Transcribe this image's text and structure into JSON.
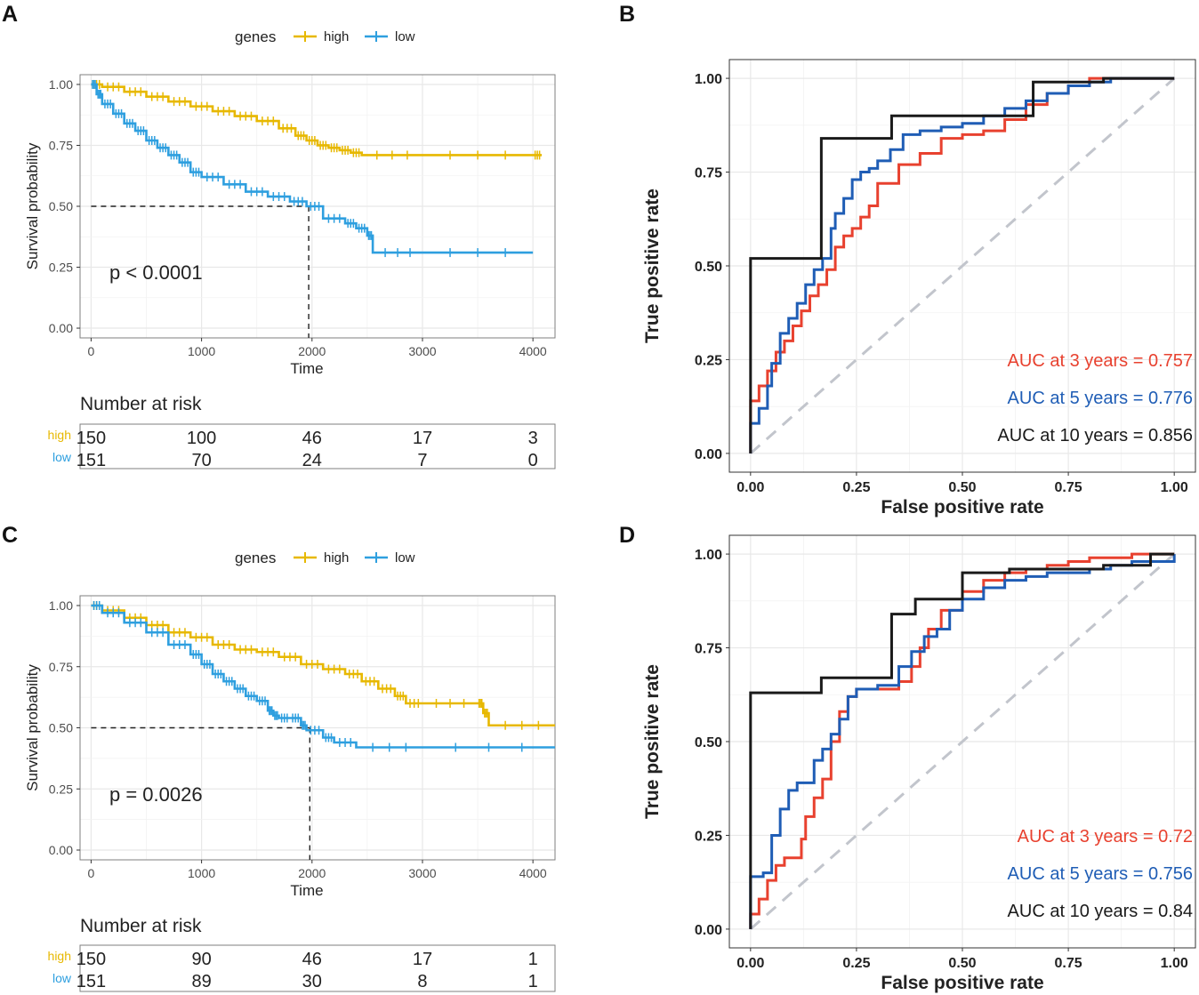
{
  "colors": {
    "high": "#E7B800",
    "low": "#2E9FDF",
    "auc3": "#E8412F",
    "auc5": "#1F5DB5",
    "auc10": "#1A1A1A",
    "diagonal": "#C2C5CC",
    "grid": "#E8E8E8"
  },
  "chart_data": [
    {
      "panel": "A",
      "type": "line",
      "subtype": "kaplan-meier",
      "legend_title": "genes",
      "legend_labels": [
        "high",
        "low"
      ],
      "xlabel": "Time",
      "ylabel": "Survival probability",
      "xlim": [
        -100,
        4200
      ],
      "ylim": [
        -0.04,
        1.04
      ],
      "xticks": [
        0,
        1000,
        2000,
        3000,
        4000
      ],
      "yticks": [
        0,
        0.25,
        0.5,
        0.75,
        1
      ],
      "xtick_labels": [
        "0",
        "1000",
        "2000",
        "3000",
        "4000"
      ],
      "ytick_labels": [
        "0.00",
        "0.25",
        "0.50",
        "0.75",
        "1.00"
      ],
      "pvalue": "p < 0.0001",
      "median_line": {
        "x": 1970,
        "y": 0.5
      },
      "series": [
        {
          "name": "high",
          "x": [
            0,
            100,
            300,
            500,
            700,
            900,
            1100,
            1300,
            1500,
            1700,
            1850,
            1950,
            2050,
            2150,
            2250,
            2350,
            2450,
            3000,
            4000,
            4080
          ],
          "y": [
            1.0,
            0.99,
            0.97,
            0.95,
            0.93,
            0.91,
            0.89,
            0.87,
            0.85,
            0.82,
            0.79,
            0.77,
            0.75,
            0.74,
            0.73,
            0.72,
            0.71,
            0.71,
            0.71,
            0.71
          ]
        },
        {
          "name": "low",
          "x": [
            0,
            50,
            100,
            200,
            300,
            400,
            500,
            600,
            700,
            800,
            900,
            1000,
            1200,
            1400,
            1600,
            1800,
            1950,
            2100,
            2300,
            2400,
            2500,
            2550,
            3000,
            4000
          ],
          "y": [
            1.0,
            0.96,
            0.92,
            0.88,
            0.84,
            0.81,
            0.77,
            0.74,
            0.71,
            0.68,
            0.64,
            0.62,
            0.59,
            0.56,
            0.54,
            0.52,
            0.5,
            0.45,
            0.43,
            0.41,
            0.38,
            0.31,
            0.31,
            0.31
          ]
        }
      ],
      "risk_table": {
        "title": "Number at risk",
        "rows": [
          {
            "label": "high",
            "values": [
              "150",
              "100",
              "46",
              "17",
              "3"
            ]
          },
          {
            "label": "low",
            "values": [
              "151",
              "70",
              "24",
              "7",
              "0"
            ]
          }
        ]
      }
    },
    {
      "panel": "B",
      "type": "line",
      "subtype": "roc",
      "xlabel": "False positive rate",
      "ylabel": "True positive rate",
      "xlim": [
        -0.05,
        1.05
      ],
      "ylim": [
        -0.05,
        1.05
      ],
      "xticks": [
        0,
        0.25,
        0.5,
        0.75,
        1
      ],
      "yticks": [
        0,
        0.25,
        0.5,
        0.75,
        1
      ],
      "tick_labels": [
        "0.00",
        "0.25",
        "0.50",
        "0.75",
        "1.00"
      ],
      "series": [
        {
          "name": "AUC at 3 years = 0.757",
          "x": [
            0,
            0,
            0.02,
            0.04,
            0.06,
            0.08,
            0.1,
            0.12,
            0.14,
            0.16,
            0.18,
            0.2,
            0.22,
            0.24,
            0.26,
            0.28,
            0.3,
            0.35,
            0.4,
            0.45,
            0.5,
            0.55,
            0.6,
            0.65,
            0.7,
            0.75,
            0.8,
            1.0
          ],
          "y": [
            0,
            0.14,
            0.18,
            0.22,
            0.27,
            0.3,
            0.34,
            0.38,
            0.42,
            0.45,
            0.49,
            0.55,
            0.58,
            0.6,
            0.63,
            0.66,
            0.72,
            0.77,
            0.8,
            0.84,
            0.85,
            0.86,
            0.89,
            0.93,
            0.96,
            0.98,
            1.0,
            1.0
          ]
        },
        {
          "name": "AUC at 5 years = 0.776",
          "x": [
            0,
            0,
            0.02,
            0.04,
            0.05,
            0.07,
            0.09,
            0.11,
            0.13,
            0.15,
            0.17,
            0.19,
            0.2,
            0.22,
            0.24,
            0.26,
            0.28,
            0.3,
            0.33,
            0.36,
            0.4,
            0.45,
            0.5,
            0.55,
            0.6,
            0.65,
            0.7,
            0.75,
            0.8,
            0.85,
            1.0
          ],
          "y": [
            0,
            0.08,
            0.12,
            0.18,
            0.24,
            0.32,
            0.36,
            0.4,
            0.45,
            0.49,
            0.52,
            0.6,
            0.64,
            0.68,
            0.73,
            0.75,
            0.76,
            0.78,
            0.81,
            0.85,
            0.86,
            0.87,
            0.88,
            0.9,
            0.92,
            0.94,
            0.96,
            0.98,
            0.99,
            1.0,
            1.0
          ]
        },
        {
          "name": "AUC at 10 years = 0.856",
          "x": [
            0,
            0,
            0.167,
            0.167,
            0.333,
            0.333,
            0.667,
            0.667,
            0.833,
            0.833,
            1.0
          ],
          "y": [
            0,
            0.52,
            0.52,
            0.84,
            0.84,
            0.9,
            0.9,
            0.99,
            0.99,
            1.0,
            1.0
          ]
        }
      ],
      "annotations": [
        "AUC at 3 years = 0.757",
        "AUC at 5 years = 0.776",
        "AUC at 10 years = 0.856"
      ]
    },
    {
      "panel": "C",
      "type": "line",
      "subtype": "kaplan-meier",
      "legend_title": "genes",
      "legend_labels": [
        "high",
        "low"
      ],
      "xlabel": "Time",
      "ylabel": "Survival probability",
      "xlim": [
        -100,
        4200
      ],
      "ylim": [
        -0.04,
        1.04
      ],
      "xticks": [
        0,
        1000,
        2000,
        3000,
        4000
      ],
      "yticks": [
        0,
        0.25,
        0.5,
        0.75,
        1
      ],
      "xtick_labels": [
        "0",
        "1000",
        "2000",
        "3000",
        "4000"
      ],
      "ytick_labels": [
        "0.00",
        "0.25",
        "0.50",
        "0.75",
        "1.00"
      ],
      "pvalue": "p = 0.0026",
      "median_line": {
        "x": 1980,
        "y": 0.5
      },
      "series": [
        {
          "name": "high",
          "x": [
            0,
            100,
            300,
            500,
            700,
            900,
            1100,
            1300,
            1500,
            1700,
            1900,
            2100,
            2300,
            2450,
            2600,
            2750,
            2850,
            3000,
            3500,
            3550,
            3600,
            4200
          ],
          "y": [
            1.0,
            0.98,
            0.95,
            0.92,
            0.89,
            0.87,
            0.84,
            0.82,
            0.81,
            0.79,
            0.76,
            0.74,
            0.72,
            0.69,
            0.66,
            0.63,
            0.6,
            0.6,
            0.6,
            0.56,
            0.51,
            0.51
          ]
        },
        {
          "name": "low",
          "x": [
            0,
            100,
            300,
            500,
            700,
            900,
            1000,
            1100,
            1200,
            1300,
            1400,
            1500,
            1600,
            1650,
            1700,
            1800,
            1900,
            1950,
            2100,
            2200,
            2400,
            3000,
            4200
          ],
          "y": [
            1.0,
            0.97,
            0.93,
            0.89,
            0.84,
            0.8,
            0.76,
            0.72,
            0.69,
            0.66,
            0.63,
            0.61,
            0.57,
            0.55,
            0.54,
            0.54,
            0.51,
            0.49,
            0.46,
            0.44,
            0.42,
            0.42,
            0.42
          ]
        }
      ],
      "risk_table": {
        "title": "Number at risk",
        "rows": [
          {
            "label": "high",
            "values": [
              "150",
              "90",
              "46",
              "17",
              "1"
            ]
          },
          {
            "label": "low",
            "values": [
              "151",
              "89",
              "30",
              "8",
              "1"
            ]
          }
        ]
      }
    },
    {
      "panel": "D",
      "type": "line",
      "subtype": "roc",
      "xlabel": "False positive rate",
      "ylabel": "True positive rate",
      "xlim": [
        -0.05,
        1.05
      ],
      "ylim": [
        -0.05,
        1.05
      ],
      "xticks": [
        0,
        0.25,
        0.5,
        0.75,
        1
      ],
      "yticks": [
        0,
        0.25,
        0.5,
        0.75,
        1
      ],
      "tick_labels": [
        "0.00",
        "0.25",
        "0.50",
        "0.75",
        "1.00"
      ],
      "series": [
        {
          "name": "AUC at 3 years = 0.72",
          "x": [
            0,
            0,
            0.02,
            0.04,
            0.06,
            0.08,
            0.1,
            0.12,
            0.13,
            0.15,
            0.17,
            0.19,
            0.21,
            0.23,
            0.25,
            0.3,
            0.35,
            0.38,
            0.4,
            0.42,
            0.45,
            0.5,
            0.55,
            0.6,
            0.65,
            0.7,
            0.75,
            0.8,
            0.9,
            1.0
          ],
          "y": [
            0,
            0.04,
            0.08,
            0.13,
            0.17,
            0.19,
            0.19,
            0.24,
            0.3,
            0.35,
            0.4,
            0.5,
            0.58,
            0.62,
            0.64,
            0.64,
            0.66,
            0.7,
            0.75,
            0.8,
            0.85,
            0.9,
            0.93,
            0.95,
            0.96,
            0.97,
            0.98,
            0.99,
            1.0,
            1.0
          ]
        },
        {
          "name": "AUC at 5 years = 0.756",
          "x": [
            0,
            0,
            0.03,
            0.05,
            0.07,
            0.09,
            0.11,
            0.13,
            0.15,
            0.17,
            0.19,
            0.21,
            0.23,
            0.25,
            0.3,
            0.35,
            0.38,
            0.41,
            0.44,
            0.47,
            0.5,
            0.55,
            0.6,
            0.65,
            0.7,
            0.75,
            0.8,
            0.85,
            0.9,
            1.0
          ],
          "y": [
            0,
            0.14,
            0.15,
            0.25,
            0.32,
            0.37,
            0.39,
            0.39,
            0.45,
            0.48,
            0.52,
            0.56,
            0.62,
            0.64,
            0.65,
            0.7,
            0.74,
            0.78,
            0.8,
            0.85,
            0.88,
            0.91,
            0.93,
            0.94,
            0.95,
            0.95,
            0.96,
            0.97,
            0.98,
            1.0
          ]
        },
        {
          "name": "AUC at 10 years = 0.84",
          "x": [
            0,
            0,
            0.167,
            0.167,
            0.333,
            0.333,
            0.389,
            0.389,
            0.5,
            0.5,
            0.611,
            0.611,
            0.833,
            0.833,
            0.944,
            0.944,
            1.0
          ],
          "y": [
            0,
            0.63,
            0.63,
            0.67,
            0.67,
            0.84,
            0.84,
            0.88,
            0.88,
            0.95,
            0.95,
            0.96,
            0.96,
            0.97,
            0.97,
            1.0,
            1.0
          ]
        }
      ],
      "annotations": [
        "AUC at 3 years = 0.72",
        "AUC at 5 years = 0.756",
        "AUC at 10 years = 0.84"
      ]
    }
  ]
}
